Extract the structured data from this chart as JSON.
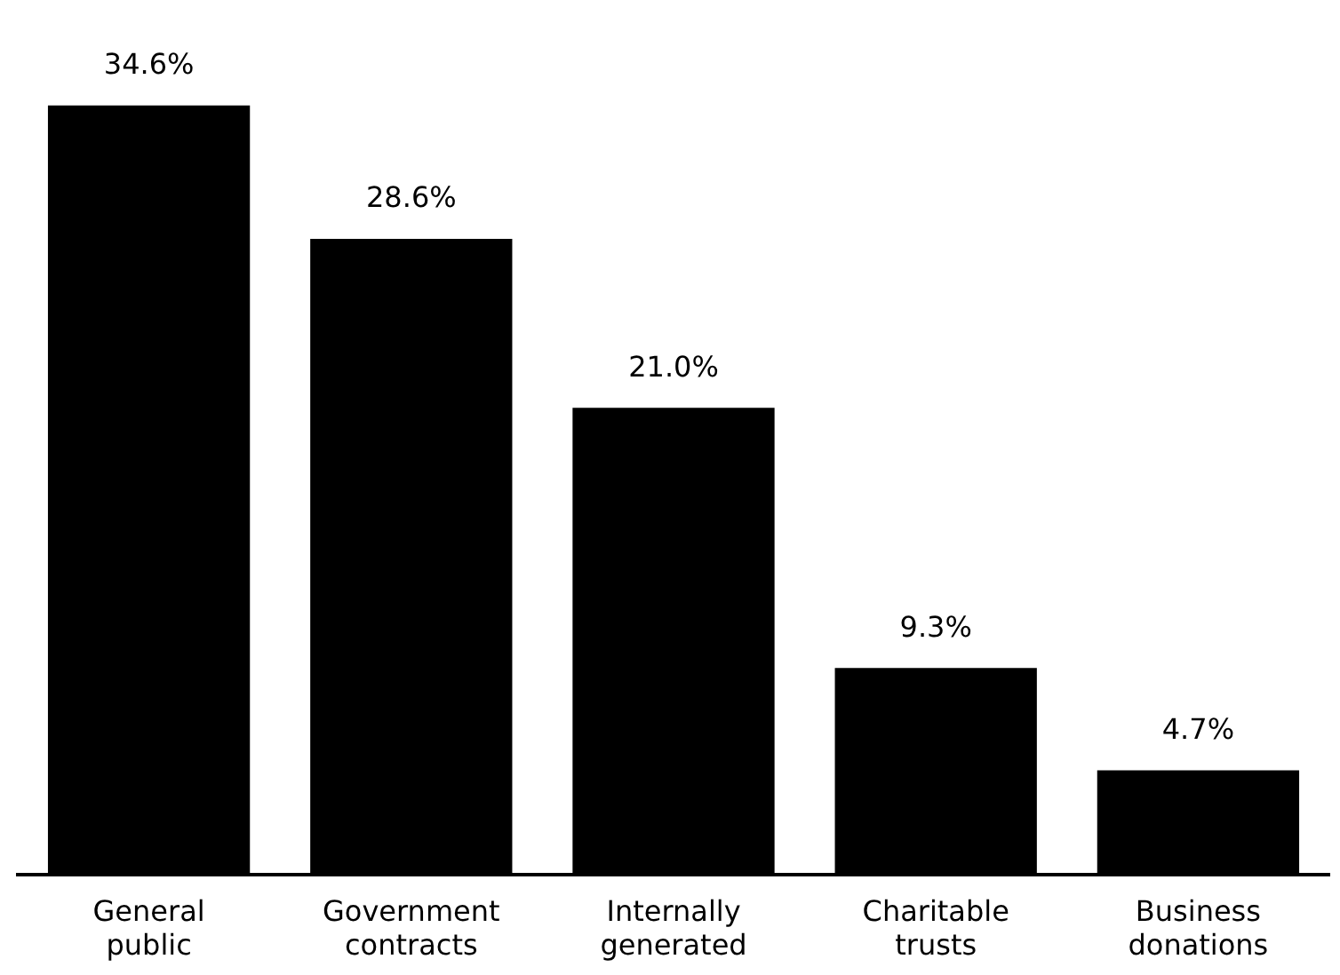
{
  "chart_data": {
    "type": "bar",
    "categories": [
      "General public",
      "Government contracts",
      "Internally generated",
      "Charitable trusts",
      "Business donations"
    ],
    "values": [
      34.6,
      28.6,
      21.0,
      9.3,
      4.7
    ],
    "value_labels": [
      "34.6%",
      "28.6%",
      "21.0%",
      "9.3%",
      "4.7%"
    ],
    "color": "#000000",
    "grid": false,
    "legend": false
  }
}
